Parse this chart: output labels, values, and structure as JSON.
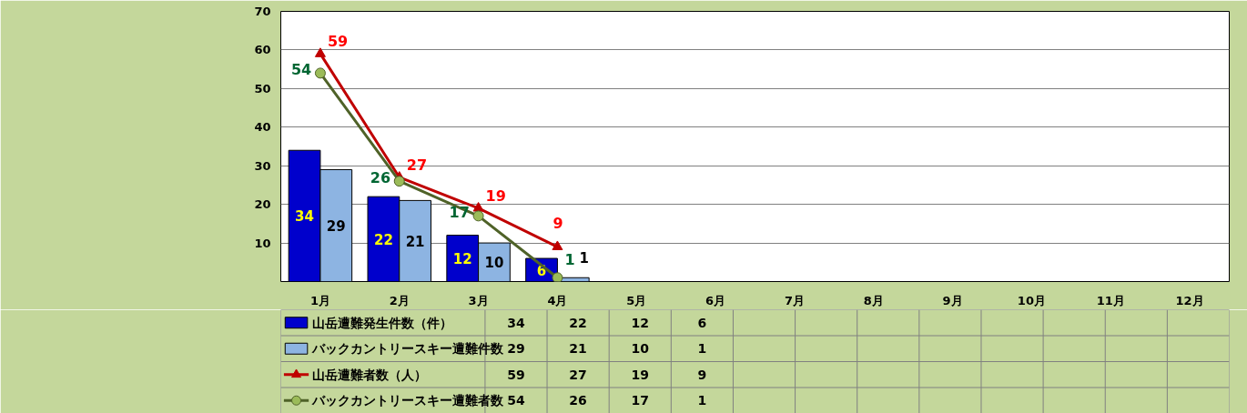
{
  "chart_data": {
    "type": "bar",
    "categories": [
      "1月",
      "2月",
      "3月",
      "4月",
      "5月",
      "6月",
      "7月",
      "8月",
      "9月",
      "10月",
      "11月",
      "12月"
    ],
    "series": [
      {
        "name": "山岳遭難発生件数（件）",
        "color": "#0000cc",
        "values": [
          34,
          22,
          12,
          6,
          null,
          null,
          null,
          null,
          null,
          null,
          null,
          null
        ]
      },
      {
        "name": "バックカントリースキー遭難件数",
        "color": "#8db4e2",
        "values": [
          29,
          21,
          10,
          1,
          null,
          null,
          null,
          null,
          null,
          null,
          null,
          null
        ]
      },
      {
        "name": "山岳遭難者数（人）",
        "type": "line",
        "color": "#c00000",
        "marker": "triangle",
        "values": [
          59,
          27,
          19,
          9,
          null,
          null,
          null,
          null,
          null,
          null,
          null,
          null
        ]
      },
      {
        "name": "バックカントリースキー遭難者数",
        "type": "line",
        "color": "#4f6228",
        "marker": "circle",
        "values": [
          54,
          26,
          17,
          1,
          null,
          null,
          null,
          null,
          null,
          null,
          null,
          null
        ]
      }
    ],
    "annotations": [
      "34",
      "22",
      "12",
      "6",
      "29",
      "21",
      "10",
      "1",
      "59",
      "27",
      "19",
      "9",
      "54",
      "26",
      "17",
      "1"
    ],
    "ylim": [
      0,
      70
    ],
    "yticks": [
      10,
      20,
      30,
      40,
      50,
      60,
      70
    ],
    "grid": "y",
    "legend": "bottom",
    "data_labels": true
  }
}
